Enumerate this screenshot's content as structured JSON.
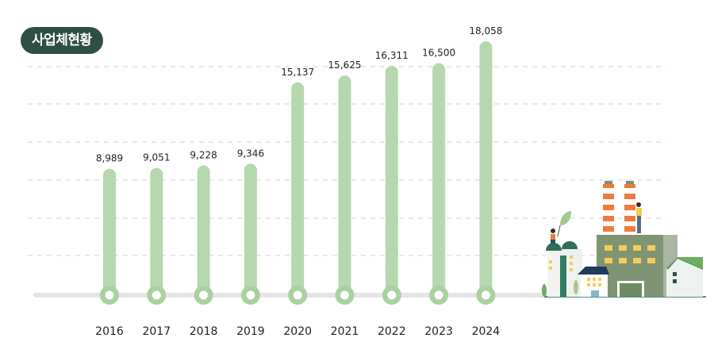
{
  "title": "사업체현황",
  "colors": {
    "bar": "#b5d8ae",
    "bar_ring": "#a9d19f",
    "badge_bg": "#2f4f46",
    "grid": "#d0d0d0",
    "baseline": "#e5e5e5"
  },
  "chart_data": {
    "type": "bar",
    "title": "사업체현황",
    "categories": [
      "2016",
      "2017",
      "2018",
      "2019",
      "2020",
      "2021",
      "2022",
      "2023",
      "2024"
    ],
    "values": [
      8989,
      9051,
      9228,
      9346,
      15137,
      15625,
      16311,
      16500,
      18058
    ],
    "value_labels": [
      "8,989",
      "9,051",
      "9,228",
      "9,346",
      "15,137",
      "15,625",
      "16,311",
      "16,500",
      "18,058"
    ],
    "xlabel": "",
    "ylabel": "",
    "grid": true,
    "legend": "none"
  }
}
